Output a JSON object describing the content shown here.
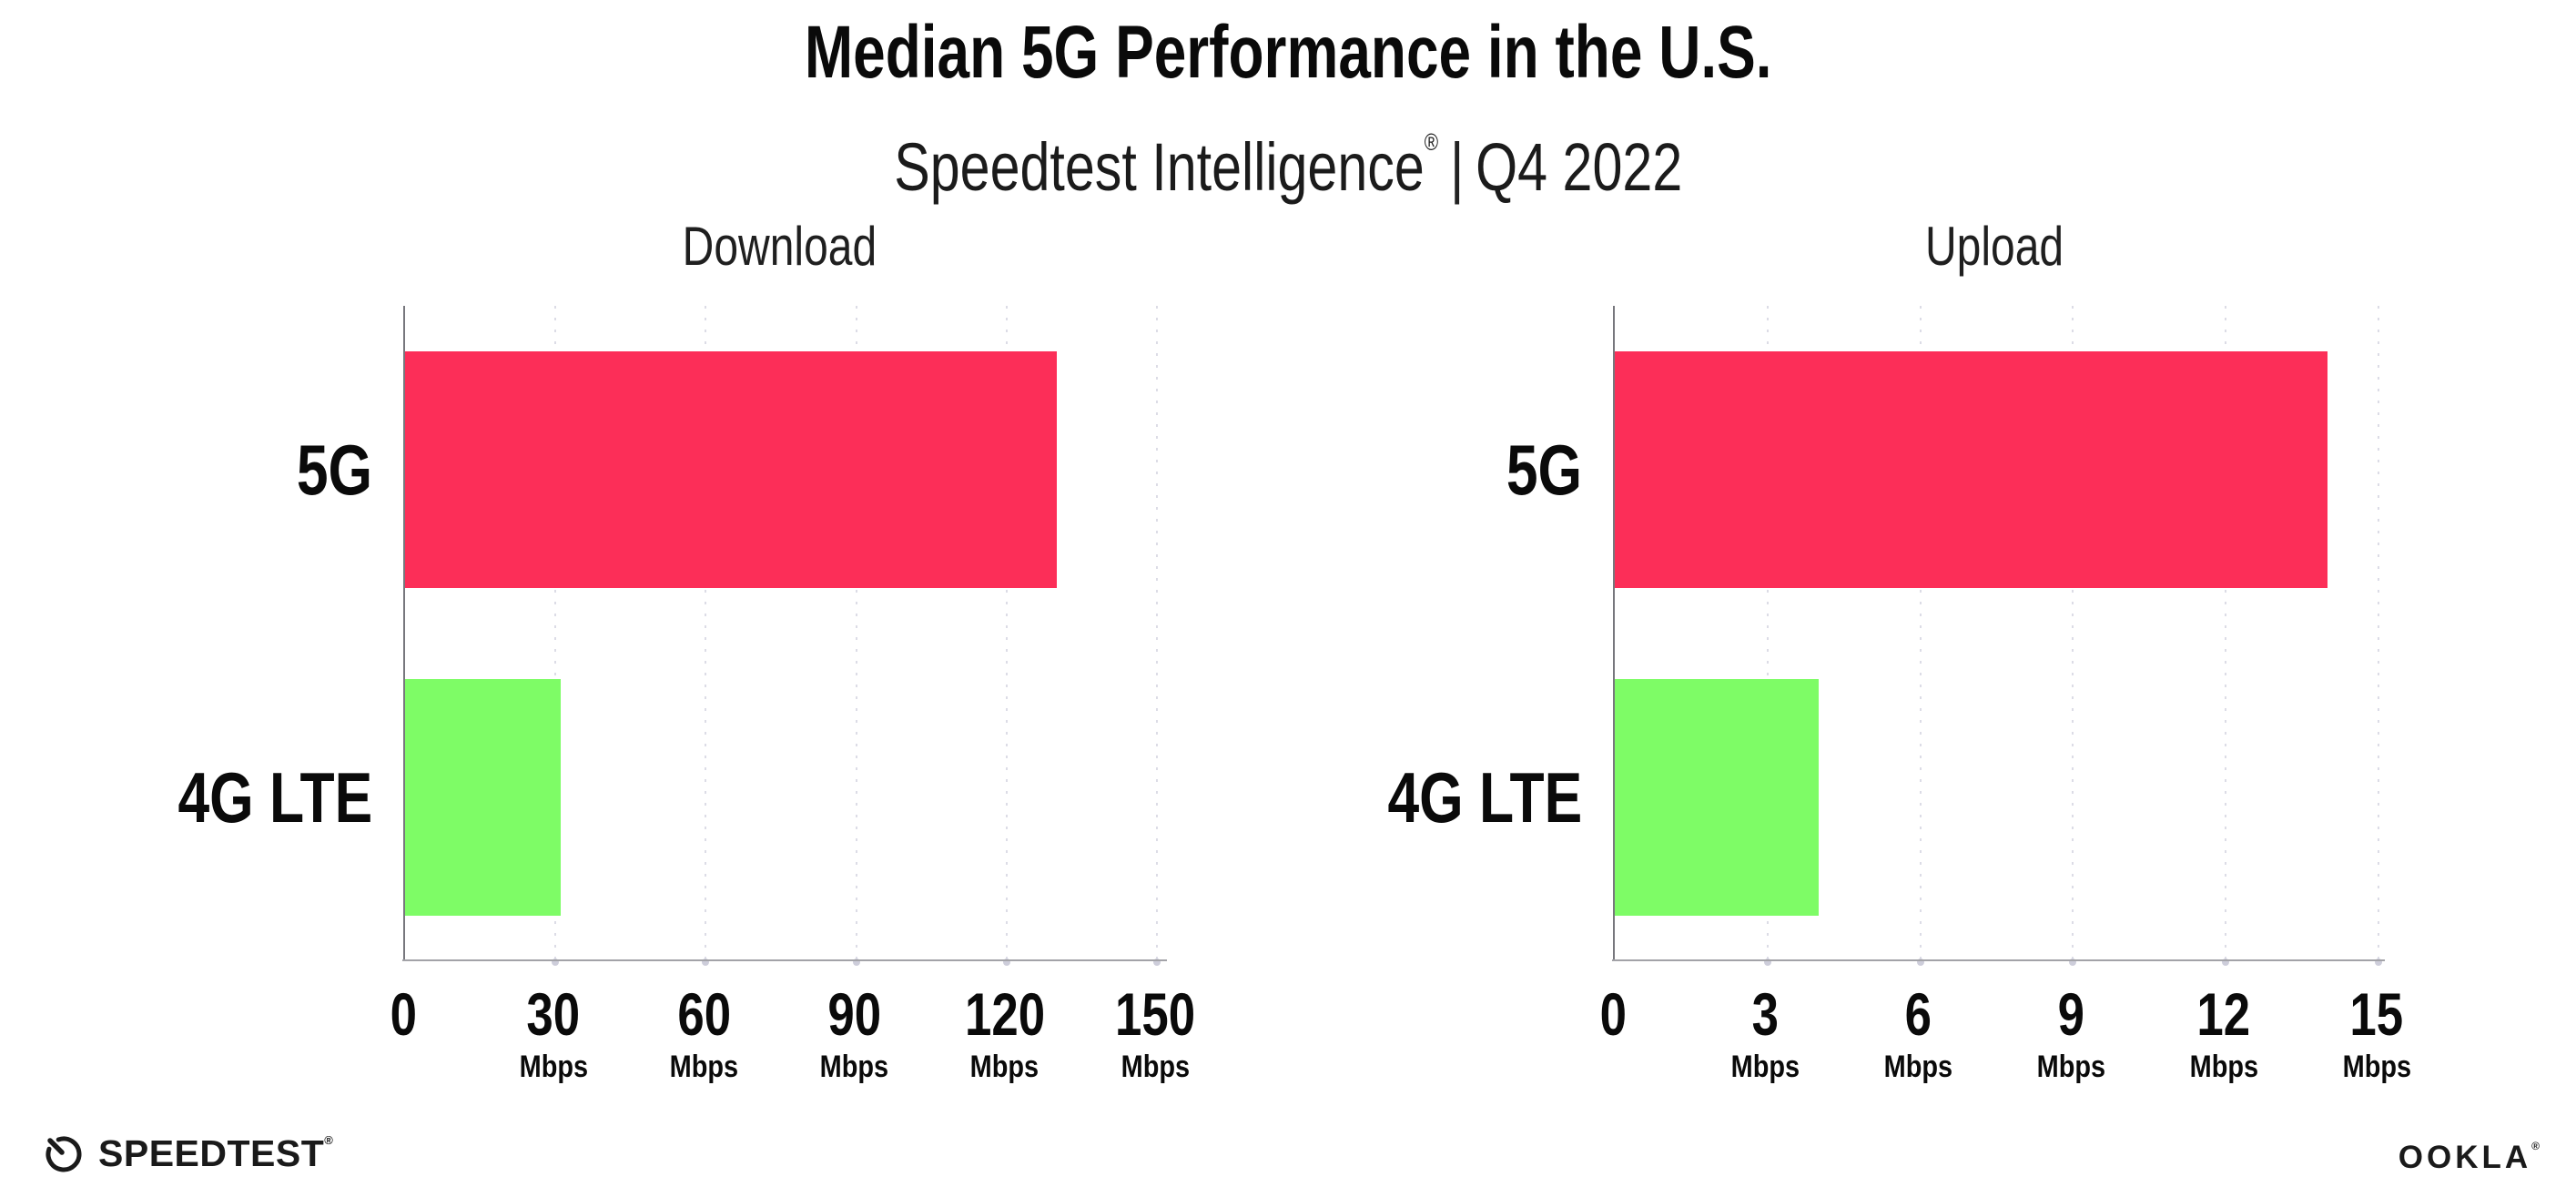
{
  "header": {
    "title": "Median 5G Performance in the U.S.",
    "subtitle_brand": "Speedtest Intelligence",
    "subtitle_reg": "®",
    "subtitle_sep": "|",
    "subtitle_period": "Q4 2022"
  },
  "colors": {
    "bar_5g": "#FC2E58",
    "bar_4g_lte": "#7EFC66",
    "gridline": "#DCDCE6",
    "x_axis": "#A3A3A8",
    "y_axis": "#77777D",
    "text": "#111111"
  },
  "chart_data": [
    {
      "type": "bar",
      "orientation": "horizontal",
      "title": "Download",
      "categories": [
        "5G",
        "4G LTE"
      ],
      "values": [
        130,
        31
      ],
      "unit": "Mbps",
      "xlim": [
        0,
        150
      ],
      "xticks": [
        0,
        30,
        60,
        90,
        120,
        150
      ],
      "bar_colors": [
        "#FC2E58",
        "#7EFC66"
      ],
      "grid": "vertical-dotted",
      "legend": "none"
    },
    {
      "type": "bar",
      "orientation": "horizontal",
      "title": "Upload",
      "categories": [
        "5G",
        "4G LTE"
      ],
      "values": [
        14,
        4
      ],
      "unit": "Mbps",
      "xlim": [
        0,
        15
      ],
      "xticks": [
        0,
        3,
        6,
        9,
        12,
        15
      ],
      "bar_colors": [
        "#FC2E58",
        "#7EFC66"
      ],
      "grid": "vertical-dotted",
      "legend": "none"
    }
  ],
  "footer": {
    "speedtest_label": "SPEEDTEST",
    "speedtest_reg": "®",
    "ookla_label": "OOKLA",
    "ookla_reg": "®"
  }
}
